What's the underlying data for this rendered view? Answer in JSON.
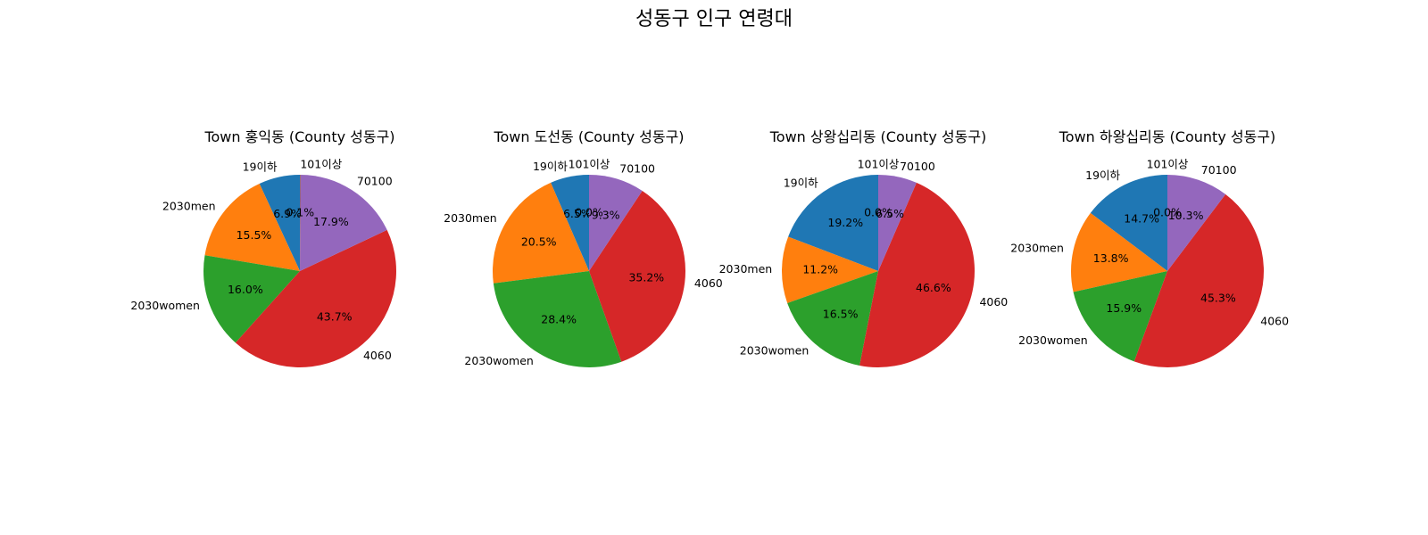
{
  "title": "성동구 인구 연령대",
  "colors": {
    "19이하": "#1f77b4",
    "2030men": "#ff7f0e",
    "2030women": "#2ca02c",
    "4060": "#d62728",
    "70100": "#9467bd",
    "101이상": "#8c564b"
  },
  "chart_data": [
    {
      "type": "pie",
      "title": "Town 홍익동 (County 성동구)",
      "labels": [
        "19이하",
        "2030men",
        "2030women",
        "4060",
        "70100",
        "101이상"
      ],
      "values": [
        6.9,
        15.5,
        16.0,
        43.7,
        17.9,
        0.1
      ],
      "value_labels": [
        "6.9%",
        "15.5%",
        "16.0%",
        "43.7%",
        "17.9%",
        "0.1%"
      ],
      "start_angle": 90,
      "direction": "counterclockwise"
    },
    {
      "type": "pie",
      "title": "Town 도선동 (County 성동구)",
      "labels": [
        "19이하",
        "2030men",
        "2030women",
        "4060",
        "70100",
        "101이상"
      ],
      "values": [
        6.5,
        20.5,
        28.4,
        35.2,
        9.3,
        0.0
      ],
      "value_labels": [
        "6.5%",
        "20.5%",
        "28.4%",
        "35.2%",
        "9.3%",
        "0.0%"
      ],
      "start_angle": 90,
      "direction": "counterclockwise"
    },
    {
      "type": "pie",
      "title": "Town 상왕십리동 (County 성동구)",
      "labels": [
        "19이하",
        "2030men",
        "2030women",
        "4060",
        "70100",
        "101이상"
      ],
      "values": [
        19.2,
        11.2,
        16.5,
        46.6,
        6.5,
        0.0
      ],
      "value_labels": [
        "19.2%",
        "11.2%",
        "16.5%",
        "46.6%",
        "6.5%",
        "0.0%"
      ],
      "start_angle": 90,
      "direction": "counterclockwise"
    },
    {
      "type": "pie",
      "title": "Town 하왕십리동 (County 성동구)",
      "labels": [
        "19이하",
        "2030men",
        "2030women",
        "4060",
        "70100",
        "101이상"
      ],
      "values": [
        14.7,
        13.8,
        15.9,
        45.3,
        10.3,
        0.0
      ],
      "value_labels": [
        "14.7%",
        "13.8%",
        "15.9%",
        "45.3%",
        "10.3%",
        "0.0%"
      ],
      "start_angle": 90,
      "direction": "counterclockwise"
    }
  ]
}
